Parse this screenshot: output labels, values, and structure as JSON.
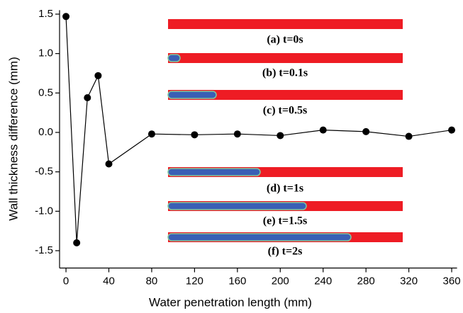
{
  "chart_data": {
    "type": "line",
    "x_label": "Water penetration length (mm)",
    "y_label": "Wall thickness difference (mm)",
    "x": [
      0,
      10,
      20,
      30,
      40,
      80,
      120,
      160,
      200,
      240,
      280,
      320,
      360
    ],
    "values": [
      1.47,
      -1.4,
      0.44,
      0.72,
      -0.4,
      -0.02,
      -0.03,
      -0.02,
      -0.04,
      0.03,
      0.01,
      -0.05,
      0.03
    ],
    "color": "#000000",
    "xlim": [
      -6,
      365
    ],
    "ylim": [
      -1.72,
      1.55
    ],
    "xticks": [
      0,
      40,
      80,
      120,
      160,
      200,
      240,
      280,
      320,
      360
    ],
    "yticks": [
      -1.5,
      {
        "value": -1.0,
        "label": "-1.0"
      },
      -0.5,
      {
        "value": 0.0,
        "label": "0.0"
      },
      0.5,
      {
        "value": 1.0,
        "label": "1.0"
      },
      1.5
    ],
    "insets": [
      "(a) t=0s",
      "(b) t=0.1s",
      "(c) t=0.5s",
      "(d) t=1s",
      "(e) t=1.5s",
      "(f) t=2s"
    ]
  }
}
